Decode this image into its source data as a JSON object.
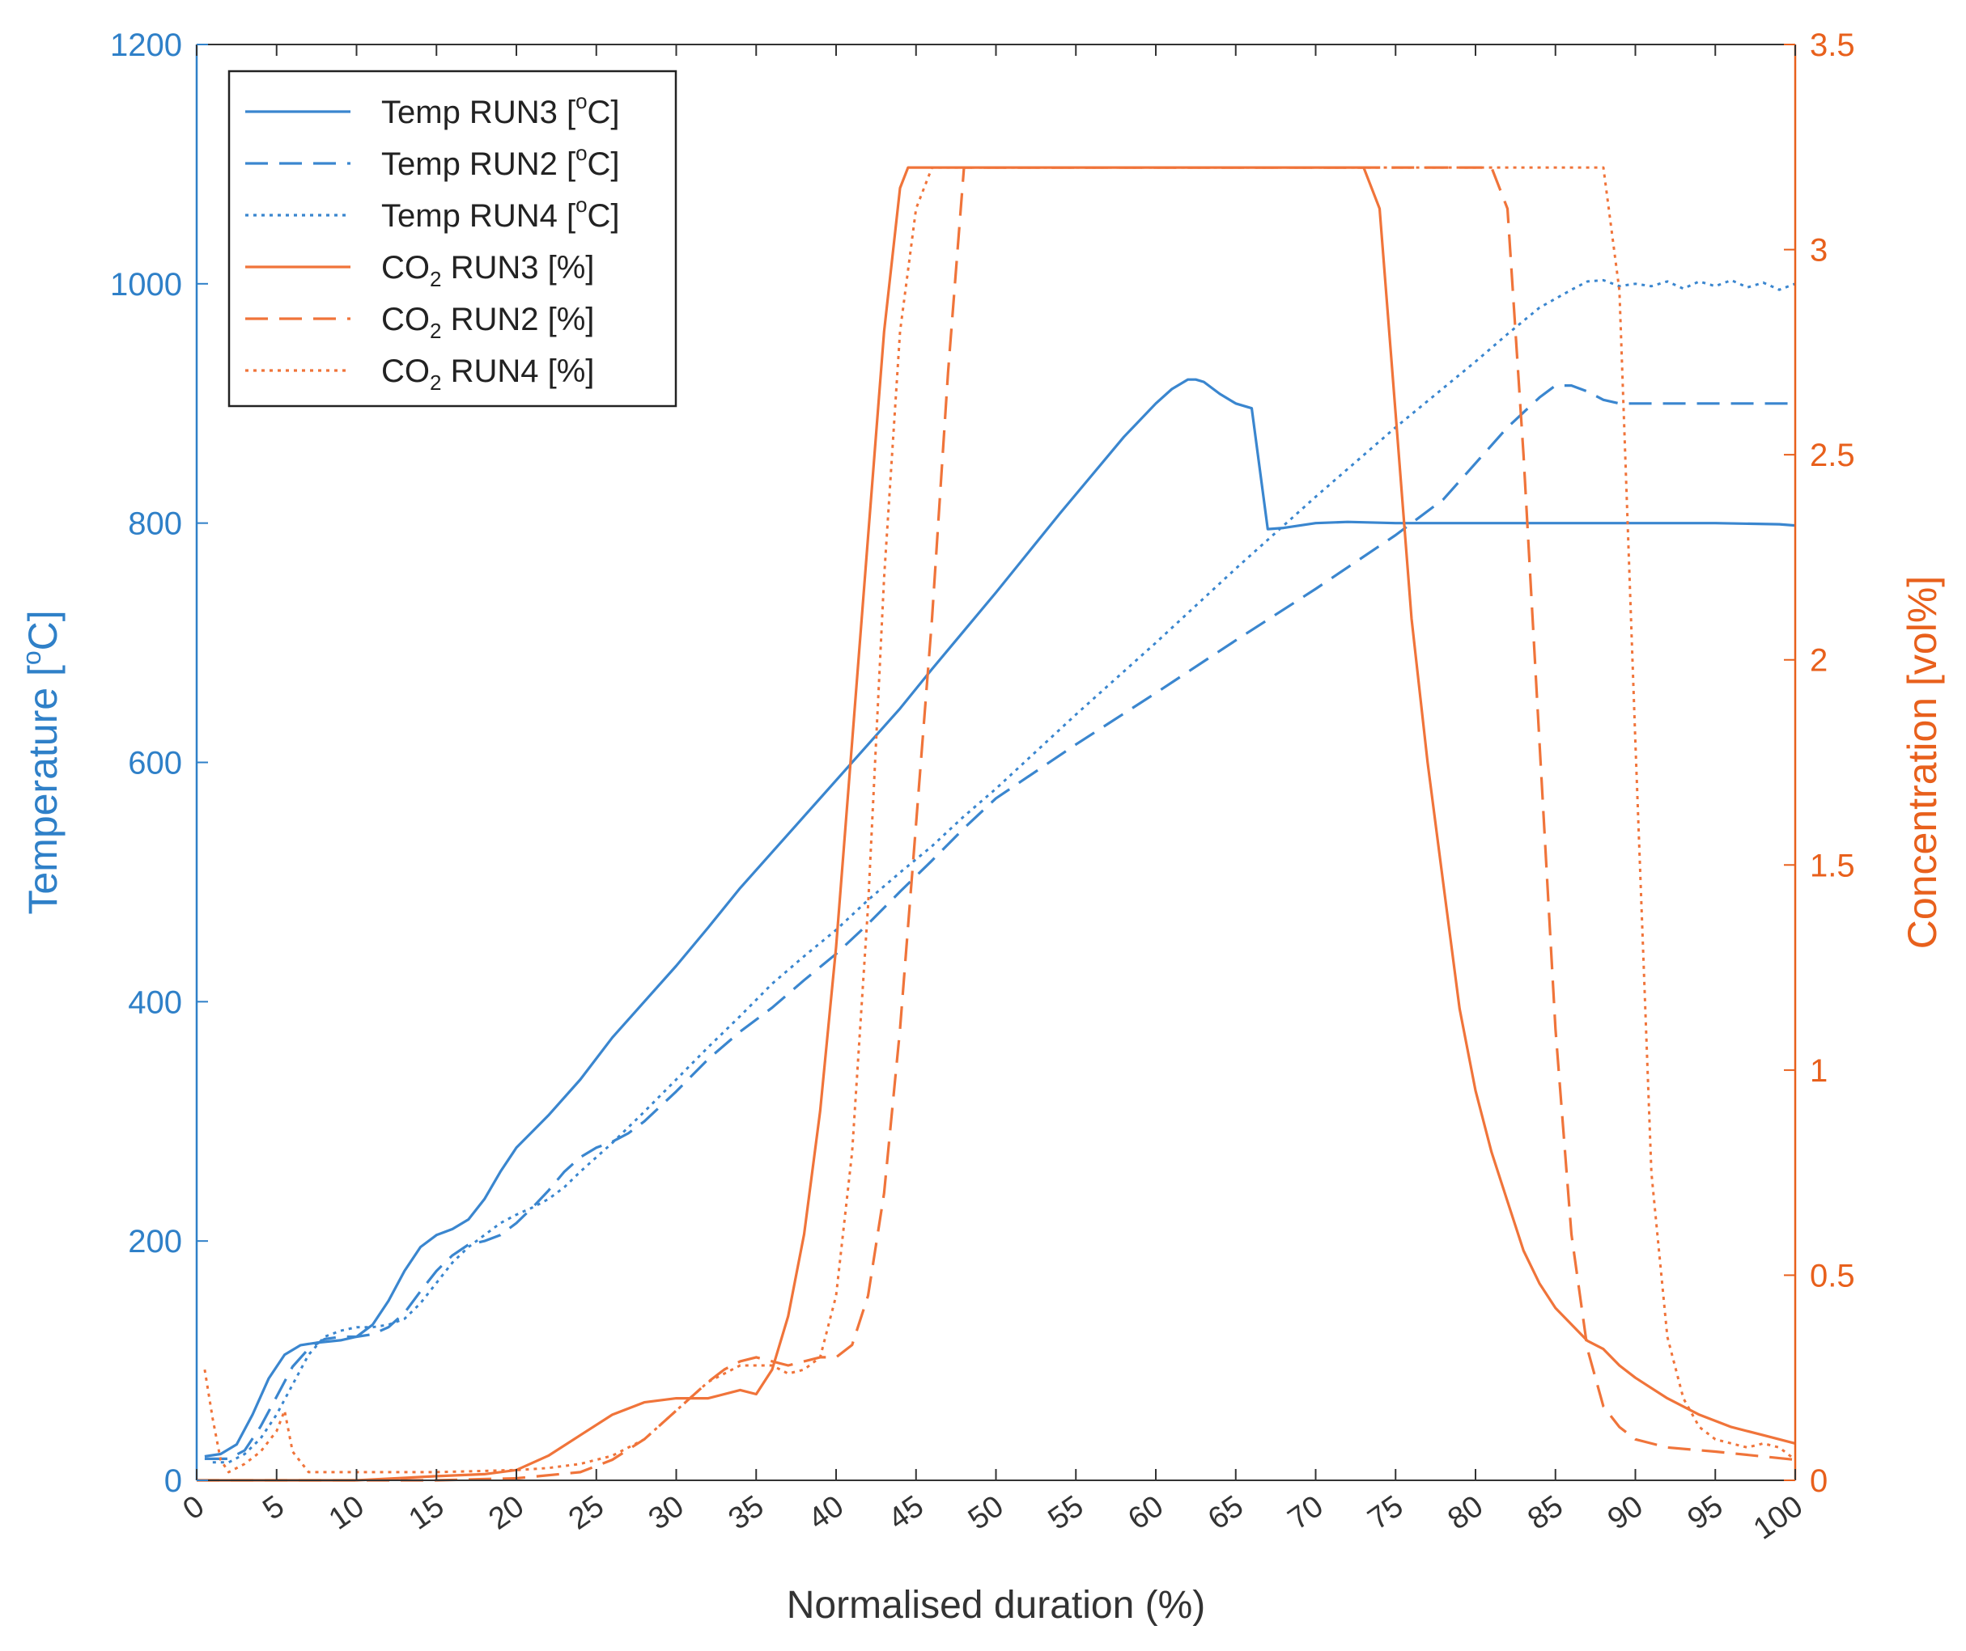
{
  "chart_data": {
    "type": "line",
    "xlabel": "Normalised duration (%)",
    "ylabel_left": "Temperature [°C]",
    "ylabel_left_sup": "o",
    "ylabel_right": "Concentration [vol%]",
    "xlim": [
      0,
      100
    ],
    "ylim_left": [
      0,
      1200
    ],
    "ylim_right": [
      0,
      3.5
    ],
    "grid": false,
    "legend_position": "top-left",
    "colors": {
      "temp": "#3a86cf",
      "co2": "#f0743a",
      "axis_left": "#2f80c8",
      "axis_right": "#e8601c"
    },
    "x_ticks": [
      "0",
      "5",
      "10",
      "15",
      "20",
      "25",
      "30",
      "35",
      "40",
      "45",
      "50",
      "55",
      "60",
      "65",
      "70",
      "75",
      "80",
      "85",
      "90",
      "95",
      "100"
    ],
    "y_left_ticks": [
      "0",
      "200",
      "400",
      "600",
      "800",
      "1000",
      "1200"
    ],
    "y_right_ticks": [
      "0",
      "0.5",
      "1",
      "1.5",
      "2",
      "2.5",
      "3",
      "3.5"
    ],
    "legend": [
      {
        "prefix": "Temp RUN3 [",
        "sup": "o",
        "suffix": "C]",
        "sub": "",
        "style": "solid",
        "group": "temp"
      },
      {
        "prefix": "Temp RUN2 [",
        "sup": "o",
        "suffix": "C]",
        "sub": "",
        "style": "dashed",
        "group": "temp"
      },
      {
        "prefix": "Temp RUN4 [",
        "sup": "o",
        "suffix": "C]",
        "sub": "",
        "style": "dotted",
        "group": "temp"
      },
      {
        "prefix": "CO",
        "sup": "",
        "suffix": " RUN3 [%]",
        "sub": "2",
        "style": "solid",
        "group": "co2"
      },
      {
        "prefix": "CO",
        "sup": "",
        "suffix": " RUN2 [%]",
        "sub": "2",
        "style": "dashed",
        "group": "co2"
      },
      {
        "prefix": "CO",
        "sup": "",
        "suffix": " RUN4 [%]",
        "sub": "2",
        "style": "dotted",
        "group": "co2"
      }
    ],
    "series": [
      {
        "name": "Temp RUN3 [°C]",
        "axis": "left",
        "style": "solid",
        "group": "temp",
        "x": [
          0.5,
          1.5,
          2.5,
          3.5,
          4.5,
          5.5,
          6.5,
          7.5,
          9,
          10,
          11,
          12,
          13,
          14,
          15,
          16,
          17,
          18,
          19,
          20,
          22,
          24,
          26,
          28,
          30,
          32,
          34,
          36,
          38,
          40,
          42,
          44,
          46,
          48,
          50,
          52,
          54,
          56,
          58,
          60,
          61,
          62,
          62.5,
          63,
          64,
          65,
          66,
          67,
          68,
          70,
          72,
          75,
          80,
          85,
          90,
          95,
          99,
          100
        ],
        "y": [
          20,
          22,
          30,
          55,
          85,
          105,
          113,
          115,
          117,
          120,
          130,
          150,
          175,
          195,
          205,
          210,
          218,
          235,
          258,
          278,
          305,
          335,
          370,
          400,
          430,
          462,
          495,
          525,
          555,
          585,
          615,
          645,
          678,
          710,
          742,
          775,
          808,
          840,
          872,
          900,
          912,
          920,
          920,
          918,
          908,
          900,
          896,
          795,
          796,
          800,
          801,
          800,
          800,
          800,
          800,
          800,
          799,
          798
        ]
      },
      {
        "name": "Temp RUN2 [°C]",
        "axis": "left",
        "style": "dashed",
        "group": "temp",
        "x": [
          0.5,
          2,
          3,
          4,
          5,
          6,
          7,
          8,
          9,
          10,
          11,
          12,
          13,
          14,
          15,
          16,
          17,
          18,
          19,
          20,
          21,
          22,
          23,
          24,
          25,
          26,
          27,
          28,
          30,
          32,
          34,
          36,
          38,
          40,
          42,
          44,
          46,
          48,
          50,
          55,
          60,
          65,
          70,
          75,
          78,
          80,
          82,
          84,
          85,
          86,
          87,
          88,
          89,
          90,
          95,
          100
        ],
        "y": [
          18,
          18,
          25,
          45,
          70,
          95,
          110,
          118,
          120,
          120,
          122,
          128,
          140,
          158,
          175,
          188,
          197,
          200,
          205,
          215,
          228,
          242,
          258,
          270,
          278,
          283,
          290,
          300,
          325,
          352,
          375,
          395,
          418,
          440,
          465,
          492,
          518,
          545,
          570,
          615,
          658,
          702,
          745,
          790,
          820,
          850,
          880,
          905,
          915,
          915,
          910,
          903,
          900,
          900,
          900,
          900
        ]
      },
      {
        "name": "Temp RUN4 [°C]",
        "axis": "left",
        "style": "dotted",
        "group": "temp",
        "x": [
          1,
          2,
          3,
          4,
          5,
          6,
          7,
          8,
          9,
          10,
          11,
          12,
          13,
          14,
          15,
          16,
          17,
          18,
          19,
          20,
          21,
          22,
          23,
          24,
          25,
          26,
          28,
          30,
          32,
          34,
          36,
          38,
          40,
          42,
          44,
          46,
          48,
          50,
          55,
          60,
          65,
          70,
          75,
          80,
          82,
          84,
          86,
          87,
          88,
          89,
          90,
          91,
          92,
          93,
          94,
          95,
          96,
          97,
          98,
          99,
          100
        ],
        "y": [
          15,
          15,
          22,
          35,
          55,
          80,
          105,
          120,
          125,
          128,
          128,
          130,
          135,
          148,
          165,
          182,
          195,
          205,
          215,
          222,
          228,
          235,
          245,
          258,
          270,
          282,
          308,
          335,
          362,
          388,
          415,
          438,
          460,
          485,
          508,
          530,
          555,
          578,
          640,
          700,
          762,
          822,
          880,
          935,
          958,
          980,
          995,
          1002,
          1003,
          998,
          1000,
          998,
          1002,
          996,
          1002,
          998,
          1003,
          997,
          1001,
          995,
          1000
        ]
      },
      {
        "name": "CO2 RUN3 [%]",
        "axis": "right",
        "style": "solid",
        "group": "co2",
        "x": [
          0,
          5,
          10,
          15,
          18,
          20,
          22,
          24,
          26,
          28,
          30,
          32,
          34,
          35,
          36,
          37,
          38,
          39,
          40,
          41,
          42,
          43,
          44,
          44.5,
          45,
          50,
          60,
          70,
          73,
          74,
          75,
          76,
          77,
          78,
          79,
          80,
          81,
          82,
          83,
          84,
          85,
          86,
          87,
          88,
          89,
          90,
          92,
          94,
          96,
          98,
          100
        ],
        "y": [
          0,
          0,
          0,
          0.01,
          0.015,
          0.025,
          0.06,
          0.11,
          0.16,
          0.19,
          0.2,
          0.2,
          0.22,
          0.21,
          0.27,
          0.4,
          0.6,
          0.9,
          1.3,
          1.8,
          2.3,
          2.8,
          3.15,
          3.2,
          3.2,
          3.2,
          3.2,
          3.2,
          3.2,
          3.1,
          2.6,
          2.1,
          1.75,
          1.45,
          1.15,
          0.95,
          0.8,
          0.68,
          0.56,
          0.48,
          0.42,
          0.38,
          0.34,
          0.32,
          0.28,
          0.25,
          0.2,
          0.16,
          0.13,
          0.11,
          0.09
        ]
      },
      {
        "name": "CO2 RUN2 [%]",
        "axis": "right",
        "style": "dashed",
        "group": "co2",
        "x": [
          0,
          5,
          10,
          15,
          20,
          24,
          26,
          28,
          30,
          32,
          33,
          34,
          35,
          36,
          37,
          38,
          39,
          40,
          41,
          42,
          43,
          44,
          45,
          46,
          47,
          48,
          49,
          50,
          60,
          70,
          80,
          81,
          82,
          83,
          84,
          85,
          86,
          87,
          88,
          89,
          90,
          92,
          95,
          100
        ],
        "y": [
          0,
          0,
          0,
          0,
          0.005,
          0.02,
          0.05,
          0.1,
          0.17,
          0.24,
          0.27,
          0.29,
          0.3,
          0.29,
          0.28,
          0.29,
          0.3,
          0.3,
          0.33,
          0.45,
          0.7,
          1.1,
          1.6,
          2.1,
          2.7,
          3.2,
          3.2,
          3.2,
          3.2,
          3.2,
          3.2,
          3.2,
          3.1,
          2.5,
          1.8,
          1.1,
          0.6,
          0.32,
          0.18,
          0.13,
          0.1,
          0.08,
          0.07,
          0.05
        ]
      },
      {
        "name": "CO2 RUN4 [%]",
        "axis": "right",
        "style": "dotted",
        "group": "co2",
        "x": [
          0.5,
          1,
          1.5,
          2,
          3,
          4,
          5,
          5.5,
          6,
          7,
          10,
          15,
          20,
          22,
          24,
          26,
          28,
          30,
          32,
          34,
          36,
          37,
          38,
          39,
          40,
          41,
          42,
          43,
          44,
          45,
          46,
          47,
          50,
          60,
          70,
          80,
          85,
          87,
          88,
          89,
          90,
          91,
          92,
          93,
          94,
          95,
          96,
          97,
          98,
          99,
          100
        ],
        "y": [
          0.27,
          0.15,
          0.05,
          0.02,
          0.04,
          0.07,
          0.12,
          0.17,
          0.07,
          0.02,
          0.02,
          0.02,
          0.025,
          0.03,
          0.04,
          0.06,
          0.1,
          0.17,
          0.24,
          0.28,
          0.28,
          0.26,
          0.27,
          0.3,
          0.45,
          0.8,
          1.4,
          2.2,
          2.8,
          3.1,
          3.2,
          3.2,
          3.2,
          3.2,
          3.2,
          3.2,
          3.2,
          3.2,
          3.2,
          2.9,
          1.8,
          0.75,
          0.35,
          0.2,
          0.13,
          0.1,
          0.09,
          0.08,
          0.09,
          0.08,
          0.05
        ]
      }
    ]
  }
}
